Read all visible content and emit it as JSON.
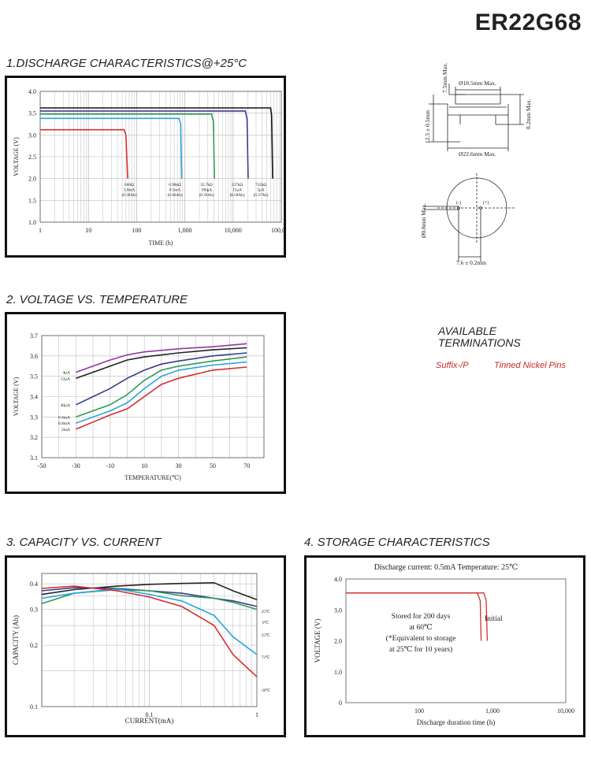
{
  "title": "ER22G68",
  "sections": {
    "s1": "1.DISCHARGE CHARACTERISTICS@+25°C",
    "s2": "2. VOLTAGE VS. TEMPERATURE",
    "s3": "3. CAPACITY VS. CURRENT",
    "s4": "4. STORAGE CHARACTERISTICS"
  },
  "terminations": {
    "heading_line1": "AVAILABLE",
    "heading_line2": "TERMINATIONS",
    "suffix": "Suffix-/P",
    "description": "Tinned Nickel Pins"
  },
  "dimensions": {
    "top_dia": "Ø18.5mm Max.",
    "bottom_dia": "Ø22.6mm Max.",
    "top_height": "7.5mm Max.",
    "mid_height": "12.5 ± 0.5mm",
    "side_height": "8.2mm Max.",
    "pin_dia": "Ø0.8mm Max.",
    "pin_spacing": "7.6 ± 0.2mm",
    "neg_label": "(-)",
    "pos_label": "(+)"
  },
  "chart_data": [
    {
      "type": "line",
      "xlabel": "TIME (h)",
      "ylabel": "VOLTAGE (V)",
      "xscale": "log",
      "xlim": [
        1,
        100000
      ],
      "ylim": [
        1.0,
        4.0
      ],
      "xticks": [
        "1",
        "10",
        "100",
        "1,000",
        "10,000",
        "100,000"
      ],
      "yticks": [
        "1.0",
        "1.5",
        "2.0",
        "2.5",
        "3.0",
        "3.5",
        "4.0"
      ],
      "grid": true,
      "series": [
        {
          "color": "#d32f2f",
          "label": [
            "660Ω",
            "5.0mA",
            "(0.30Ah)"
          ],
          "points": [
            [
              1,
              3.12
            ],
            [
              55,
              3.12
            ],
            [
              60,
              3.0
            ],
            [
              65,
              2.0
            ]
          ]
        },
        {
          "color": "#29a5dd",
          "label": [
            "6.98kΩ",
            "0.5mA",
            "(0.40Ah)"
          ],
          "points": [
            [
              1,
              3.38
            ],
            [
              750,
              3.38
            ],
            [
              820,
              3.25
            ],
            [
              860,
              2.0
            ]
          ]
        },
        {
          "color": "#2e9b58",
          "label": [
            "35.7kΩ",
            "100μA",
            "(0.39Ah)"
          ],
          "points": [
            [
              1,
              3.48
            ],
            [
              3600,
              3.48
            ],
            [
              3900,
              3.3
            ],
            [
              4100,
              2.0
            ]
          ]
        },
        {
          "color": "#3a3a8c",
          "label": [
            "237kΩ",
            "15μA",
            "(0.58Ah)"
          ],
          "points": [
            [
              1,
              3.55
            ],
            [
              18000,
              3.55
            ],
            [
              19500,
              3.35
            ],
            [
              20500,
              2.0
            ]
          ]
        },
        {
          "color": "#111111",
          "label": [
            "732kΩ",
            "5μA",
            "(0.37Ah)"
          ],
          "points": [
            [
              1,
              3.62
            ],
            [
              60000,
              3.62
            ],
            [
              63000,
              3.45
            ],
            [
              66000,
              2.0
            ]
          ]
        }
      ]
    },
    {
      "type": "line",
      "xlabel": "TEMPERATURE(℃)",
      "ylabel": "VOLTAGE (V)",
      "xlim": [
        -50,
        80
      ],
      "ylim": [
        3.1,
        3.7
      ],
      "xticks": [
        "-50",
        "-30",
        "-10",
        "10",
        "30",
        "50",
        "70"
      ],
      "yticks": [
        "3.1",
        "3.2",
        "3.3",
        "3.4",
        "3.5",
        "3.6",
        "3.7"
      ],
      "grid": true,
      "series": [
        {
          "name": "4μA",
          "color": "#8e3a9e",
          "points": [
            [
              -30,
              3.52
            ],
            [
              -10,
              3.58
            ],
            [
              0,
              3.605
            ],
            [
              10,
              3.62
            ],
            [
              30,
              3.635
            ],
            [
              50,
              3.645
            ],
            [
              70,
              3.66
            ]
          ]
        },
        {
          "name": "12μA",
          "color": "#222222",
          "points": [
            [
              -30,
              3.49
            ],
            [
              -10,
              3.55
            ],
            [
              0,
              3.58
            ],
            [
              10,
              3.595
            ],
            [
              30,
              3.615
            ],
            [
              50,
              3.63
            ],
            [
              70,
              3.64
            ]
          ]
        },
        {
          "name": "40μA",
          "color": "#3a3a8c",
          "points": [
            [
              -30,
              3.36
            ],
            [
              -10,
              3.44
            ],
            [
              0,
              3.49
            ],
            [
              10,
              3.53
            ],
            [
              20,
              3.56
            ],
            [
              30,
              3.575
            ],
            [
              50,
              3.6
            ],
            [
              70,
              3.615
            ]
          ]
        },
        {
          "name": "0.4mA",
          "color": "#2e9b58",
          "points": [
            [
              -30,
              3.3
            ],
            [
              -10,
              3.36
            ],
            [
              0,
              3.41
            ],
            [
              10,
              3.48
            ],
            [
              20,
              3.53
            ],
            [
              30,
              3.55
            ],
            [
              50,
              3.575
            ],
            [
              70,
              3.595
            ]
          ]
        },
        {
          "name": "0.8mA",
          "color": "#29a5dd",
          "points": [
            [
              -30,
              3.27
            ],
            [
              -10,
              3.33
            ],
            [
              0,
              3.37
            ],
            [
              10,
              3.44
            ],
            [
              20,
              3.5
            ],
            [
              30,
              3.53
            ],
            [
              50,
              3.555
            ],
            [
              70,
              3.57
            ]
          ]
        },
        {
          "name": "2mA",
          "color": "#d32f2f",
          "points": [
            [
              -30,
              3.24
            ],
            [
              -10,
              3.31
            ],
            [
              0,
              3.34
            ],
            [
              10,
              3.4
            ],
            [
              20,
              3.46
            ],
            [
              30,
              3.49
            ],
            [
              50,
              3.53
            ],
            [
              70,
              3.545
            ]
          ]
        }
      ]
    },
    {
      "type": "line",
      "xlabel": "CURRENT(mA)",
      "ylabel": "CAPACITY (Ah)",
      "xscale": "log",
      "yscale": "log",
      "xlim": [
        0.01,
        1
      ],
      "ylim": [
        0.1,
        0.45
      ],
      "xticks": [
        "0.1",
        "1"
      ],
      "yticks": [
        "0.1",
        "0.2",
        "0.3",
        "0.4"
      ],
      "grid": true,
      "series": [
        {
          "name": "25℃",
          "color": "#222222",
          "points": [
            [
              0.01,
              0.355
            ],
            [
              0.02,
              0.375
            ],
            [
              0.05,
              0.39
            ],
            [
              0.1,
              0.398
            ],
            [
              0.2,
              0.402
            ],
            [
              0.4,
              0.405
            ],
            [
              0.6,
              0.37
            ],
            [
              1,
              0.335
            ]
          ]
        },
        {
          "name": "0℃",
          "color": "#3a3a8c",
          "points": [
            [
              0.01,
              0.37
            ],
            [
              0.02,
              0.383
            ],
            [
              0.05,
              0.38
            ],
            [
              0.1,
              0.37
            ],
            [
              0.2,
              0.36
            ],
            [
              0.4,
              0.34
            ],
            [
              0.6,
              0.33
            ],
            [
              1,
              0.31
            ]
          ]
        },
        {
          "name": "55℃",
          "color": "#2e9b58",
          "points": [
            [
              0.01,
              0.32
            ],
            [
              0.02,
              0.36
            ],
            [
              0.05,
              0.375
            ],
            [
              0.1,
              0.37
            ],
            [
              0.2,
              0.35
            ],
            [
              0.4,
              0.34
            ],
            [
              0.6,
              0.325
            ],
            [
              1,
              0.3
            ]
          ]
        },
        {
          "name": "72℃",
          "color": "#29a5dd",
          "points": [
            [
              0.01,
              0.34
            ],
            [
              0.02,
              0.36
            ],
            [
              0.05,
              0.378
            ],
            [
              0.1,
              0.355
            ],
            [
              0.2,
              0.33
            ],
            [
              0.4,
              0.28
            ],
            [
              0.6,
              0.22
            ],
            [
              1,
              0.18
            ]
          ]
        },
        {
          "name": "-30℃",
          "color": "#d32f2f",
          "points": [
            [
              0.01,
              0.38
            ],
            [
              0.02,
              0.39
            ],
            [
              0.05,
              0.37
            ],
            [
              0.1,
              0.345
            ],
            [
              0.2,
              0.31
            ],
            [
              0.4,
              0.25
            ],
            [
              0.6,
              0.18
            ],
            [
              1,
              0.14
            ]
          ]
        }
      ]
    },
    {
      "type": "line",
      "title": "Discharge current: 0.5mA  Temperature:  25℃",
      "xlabel": "Discharge duration time (h)",
      "ylabel": "VOLTAGE (V)",
      "xscale": "log",
      "xlim": [
        10,
        10000
      ],
      "ylim": [
        0,
        4.0
      ],
      "xticks": [
        "100",
        "1,000",
        "10,000"
      ],
      "yticks": [
        "0",
        "1.0",
        "2.0",
        "3.0",
        "4.0"
      ],
      "grid": false,
      "annotation_lines": [
        "Stored for 200 days",
        "at 60℃",
        "(*Equivalent to storage",
        "at 25℃ for 10 years)"
      ],
      "initial_label": "Initial",
      "series": [
        {
          "color": "#d32f2f",
          "points": [
            [
              10,
              3.55
            ],
            [
              620,
              3.55
            ],
            [
              680,
              3.3
            ],
            [
              700,
              2.0
            ]
          ]
        },
        {
          "color": "#d32f2f",
          "points": [
            [
              10,
              3.55
            ],
            [
              760,
              3.55
            ],
            [
              820,
              3.3
            ],
            [
              850,
              2.0
            ]
          ]
        }
      ]
    }
  ]
}
